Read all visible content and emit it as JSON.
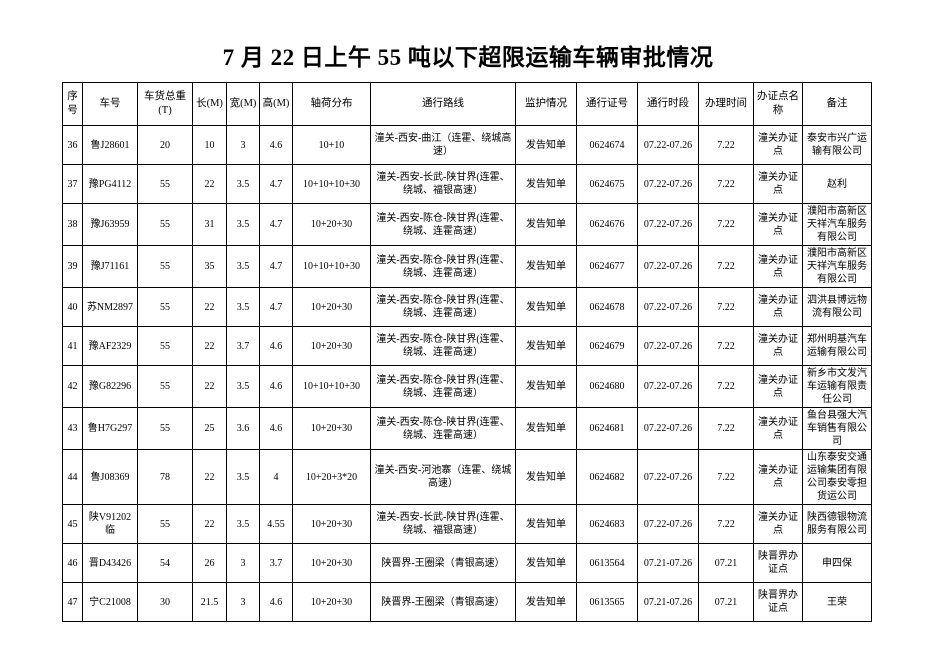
{
  "page": {
    "background_color": "#ffffff",
    "text_color": "#000000",
    "border_color": "#000000"
  },
  "title": "7 月 22 日上午 55 吨以下超限运输车辆审批情况",
  "table": {
    "headers": [
      "序号",
      "车号",
      "车货总重(T)",
      "长(M)",
      "宽(M)",
      "高(M)",
      "轴荷分布",
      "通行路线",
      "监护情况",
      "通行证号",
      "通行时段",
      "办理时间",
      "办证点名称",
      "备注"
    ],
    "rows": [
      [
        "36",
        "鲁J28601",
        "20",
        "10",
        "3",
        "4.6",
        "10+10",
        "潼关-西安-曲江（连霍、绕城高速）",
        "发告知单",
        "0624674",
        "07.22-07.26",
        "7.22",
        "潼关办证点",
        "泰安市兴广运输有限公司"
      ],
      [
        "37",
        "豫PG4112",
        "55",
        "22",
        "3.5",
        "4.7",
        "10+10+10+30",
        "潼关-西安-长武-陕甘界(连霍、绕城、福银高速）",
        "发告知单",
        "0624675",
        "07.22-07.26",
        "7.22",
        "潼关办证点",
        "赵利"
      ],
      [
        "38",
        "豫J63959",
        "55",
        "31",
        "3.5",
        "4.7",
        "10+20+30",
        "潼关-西安-陈仓-陕甘界(连霍、绕城、连霍高速）",
        "发告知单",
        "0624676",
        "07.22-07.26",
        "7.22",
        "潼关办证点",
        "濮阳市高新区天祥汽车服务有限公司"
      ],
      [
        "39",
        "豫J71161",
        "55",
        "35",
        "3.5",
        "4.7",
        "10+10+10+30",
        "潼关-西安-陈仓-陕甘界(连霍、绕城、连霍高速）",
        "发告知单",
        "0624677",
        "07.22-07.26",
        "7.22",
        "潼关办证点",
        "濮阳市高新区天祥汽车服务有限公司"
      ],
      [
        "40",
        "苏NM2897",
        "55",
        "22",
        "3.5",
        "4.7",
        "10+20+30",
        "潼关-西安-陈仓-陕甘界(连霍、绕城、连霍高速）",
        "发告知单",
        "0624678",
        "07.22-07.26",
        "7.22",
        "潼关办证点",
        "泗洪县博远物流有限公司"
      ],
      [
        "41",
        "豫AF2329",
        "55",
        "22",
        "3.7",
        "4.6",
        "10+20+30",
        "潼关-西安-陈仓-陕甘界(连霍、绕城、连霍高速）",
        "发告知单",
        "0624679",
        "07.22-07.26",
        "7.22",
        "潼关办证点",
        "郑州明基汽车运输有限公司"
      ],
      [
        "42",
        "豫G82296",
        "55",
        "22",
        "3.5",
        "4.6",
        "10+10+10+30",
        "潼关-西安-陈仓-陕甘界(连霍、绕城、连霍高速）",
        "发告知单",
        "0624680",
        "07.22-07.26",
        "7.22",
        "潼关办证点",
        "新乡市文发汽车运输有限责任公司"
      ],
      [
        "43",
        "鲁H7G297",
        "55",
        "25",
        "3.6",
        "4.6",
        "10+20+30",
        "潼关-西安-陈仓-陕甘界(连霍、绕城、连霍高速）",
        "发告知单",
        "0624681",
        "07.22-07.26",
        "7.22",
        "潼关办证点",
        "鱼台县强大汽车销售有限公司"
      ],
      [
        "44",
        "鲁J08369",
        "78",
        "22",
        "3.5",
        "4",
        "10+20+3*20",
        "潼关-西安-河池寨（连霍、绕城高速）",
        "发告知单",
        "0624682",
        "07.22-07.26",
        "7.22",
        "潼关办证点",
        "山东泰安交通运输集团有限公司泰安零担货运公司"
      ],
      [
        "45",
        "陕V91202临",
        "55",
        "22",
        "3.5",
        "4.55",
        "10+20+30",
        "潼关-西安-长武-陕甘界(连霍、绕城、福银高速）",
        "发告知单",
        "0624683",
        "07.22-07.26",
        "7.22",
        "潼关办证点",
        "陕西德银物流服务有限公司"
      ],
      [
        "46",
        "晋D43426",
        "54",
        "26",
        "3",
        "3.7",
        "10+20+30",
        "陕晋界-王圈梁（青银高速）",
        "发告知单",
        "0613564",
        "07.21-07.26",
        "07.21",
        "陕晋界办证点",
        "申四保"
      ],
      [
        "47",
        "宁C21008",
        "30",
        "21.5",
        "3",
        "4.6",
        "10+20+30",
        "陕晋界-王圈梁（青银高速）",
        "发告知单",
        "0613565",
        "07.21-07.26",
        "07.21",
        "陕晋界办证点",
        "王荣"
      ]
    ]
  }
}
